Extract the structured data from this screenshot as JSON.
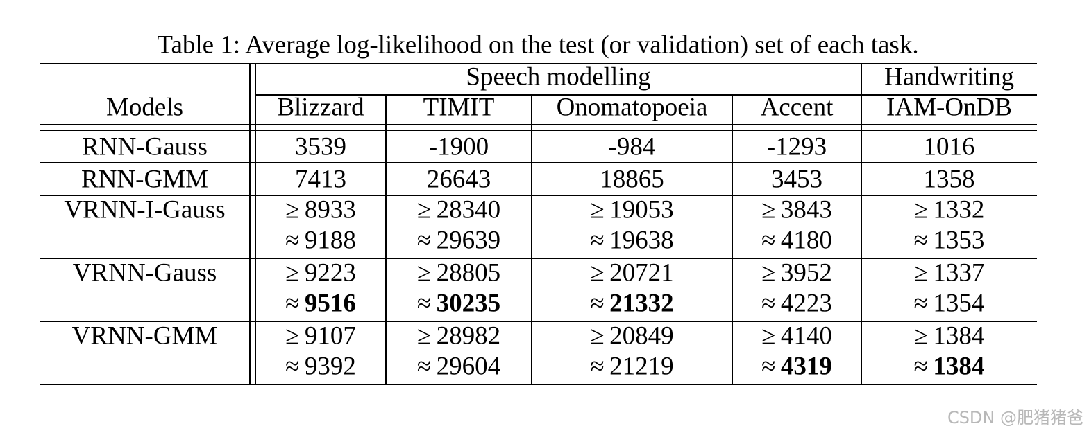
{
  "caption": "Table 1: Average log-likelihood on the test (or validation) set of each task.",
  "header": {
    "groups": [
      "Speech modelling",
      "Handwriting"
    ],
    "columns": [
      "Models",
      "Blizzard",
      "TIMIT",
      "Onomatopoeia",
      "Accent",
      "IAM-OnDB"
    ]
  },
  "rows": [
    {
      "model": "RNN-Gauss",
      "cells": [
        [
          {
            "value": 3539
          }
        ],
        [
          {
            "value": -1900
          }
        ],
        [
          {
            "value": -984
          }
        ],
        [
          {
            "value": -1293
          }
        ],
        [
          {
            "value": 1016
          }
        ]
      ]
    },
    {
      "model": "RNN-GMM",
      "cells": [
        [
          {
            "value": 7413
          }
        ],
        [
          {
            "value": 26643
          }
        ],
        [
          {
            "value": 18865
          }
        ],
        [
          {
            "value": 3453
          }
        ],
        [
          {
            "value": 1358
          }
        ]
      ]
    },
    {
      "model": "VRNN-I-Gauss",
      "cells": [
        [
          {
            "sign": "≥",
            "value": 8933
          },
          {
            "sign": "≈",
            "value": 9188
          }
        ],
        [
          {
            "sign": "≥",
            "value": 28340
          },
          {
            "sign": "≈",
            "value": 29639
          }
        ],
        [
          {
            "sign": "≥",
            "value": 19053
          },
          {
            "sign": "≈",
            "value": 19638
          }
        ],
        [
          {
            "sign": "≥",
            "value": 3843
          },
          {
            "sign": "≈",
            "value": 4180
          }
        ],
        [
          {
            "sign": "≥",
            "value": 1332
          },
          {
            "sign": "≈",
            "value": 1353
          }
        ]
      ]
    },
    {
      "model": "VRNN-Gauss",
      "cells": [
        [
          {
            "sign": "≥",
            "value": 9223
          },
          {
            "sign": "≈",
            "value": 9516,
            "bold": true
          }
        ],
        [
          {
            "sign": "≥",
            "value": 28805
          },
          {
            "sign": "≈",
            "value": 30235,
            "bold": true
          }
        ],
        [
          {
            "sign": "≥",
            "value": 20721
          },
          {
            "sign": "≈",
            "value": 21332,
            "bold": true
          }
        ],
        [
          {
            "sign": "≥",
            "value": 3952
          },
          {
            "sign": "≈",
            "value": 4223
          }
        ],
        [
          {
            "sign": "≥",
            "value": 1337
          },
          {
            "sign": "≈",
            "value": 1354
          }
        ]
      ]
    },
    {
      "model": "VRNN-GMM",
      "cells": [
        [
          {
            "sign": "≥",
            "value": 9107
          },
          {
            "sign": "≈",
            "value": 9392
          }
        ],
        [
          {
            "sign": "≥",
            "value": 28982
          },
          {
            "sign": "≈",
            "value": 29604
          }
        ],
        [
          {
            "sign": "≥",
            "value": 20849
          },
          {
            "sign": "≈",
            "value": 21219
          }
        ],
        [
          {
            "sign": "≥",
            "value": 4140
          },
          {
            "sign": "≈",
            "value": 4319,
            "bold": true
          }
        ],
        [
          {
            "sign": "≥",
            "value": 1384
          },
          {
            "sign": "≈",
            "value": 1384,
            "bold": true
          }
        ]
      ]
    }
  ],
  "watermark": "CSDN @肥猪猪爸"
}
